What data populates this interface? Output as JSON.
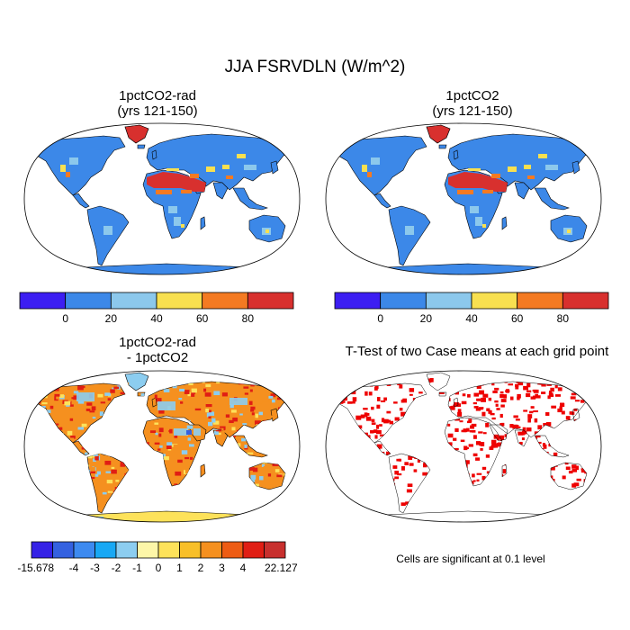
{
  "figure": {
    "title": "JJA FSRVDLN (W/m^2)",
    "significance_note": "Cells are significant at 0.1 level"
  },
  "panels": [
    {
      "title_line1": "1pctCO2-rad",
      "title_line2": "(yrs 121-150)"
    },
    {
      "title_line1": "1pctCO2",
      "title_line2": "(yrs 121-150)"
    },
    {
      "title_line1": "1pctCO2-rad",
      "title_line2": "- 1pctCO2"
    },
    {
      "title_line1": "T-Test of two Case means at each grid point",
      "title_line2": ""
    }
  ],
  "colorbars": {
    "abs": {
      "colors": [
        "#3c1ef2",
        "#3c88e8",
        "#8cc8ec",
        "#f8e050",
        "#f47a22",
        "#d8302e"
      ],
      "labels": [
        "0",
        "20",
        "40",
        "60",
        "80"
      ]
    },
    "diff": {
      "colors": [
        "#3522e6",
        "#3461e0",
        "#3d8af0",
        "#18a8f4",
        "#8ccdf0",
        "#fdf6a8",
        "#fde25a",
        "#f8bf28",
        "#f5901f",
        "#ee5c14",
        "#e01e14",
        "#c8302e"
      ],
      "labels": [
        "-15.678",
        "-4",
        "-3",
        "-2",
        "-1",
        "0",
        "1",
        "2",
        "3",
        "4",
        "22.127"
      ]
    }
  },
  "map_colors": {
    "ocean": "#ffffff",
    "land_base": "#3c88e8",
    "high": "#d8302e",
    "orange": "#f47a22",
    "yellow": "#f8e050",
    "light": "#8cc8ec",
    "diff_pos": "#f5901f",
    "diff_yellow": "#fde25a",
    "diff_neg": "#8ccdf0",
    "diff_red": "#e01e14",
    "diff_blue": "#3461e0",
    "sig": "#ee0000"
  }
}
